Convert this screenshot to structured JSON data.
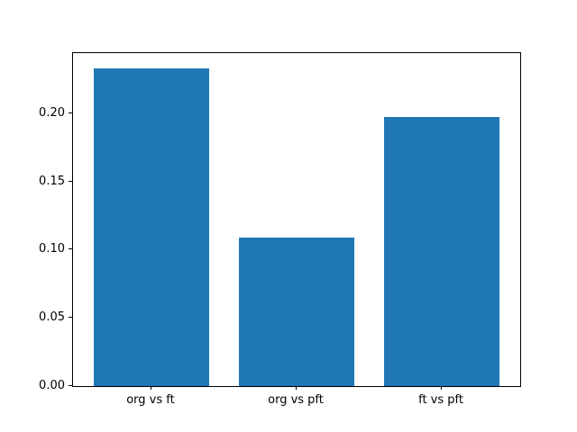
{
  "chart_data": {
    "type": "bar",
    "title": "",
    "xlabel": "",
    "ylabel": "",
    "categories": [
      "org vs ft",
      "org vs pft",
      "ft vs pft"
    ],
    "values": [
      0.233,
      0.109,
      0.197
    ],
    "ylim": [
      0,
      0.244
    ],
    "yticks": [
      0.0,
      0.05,
      0.1,
      0.15,
      0.2
    ],
    "ytick_labels": [
      "0.00",
      "0.05",
      "0.10",
      "0.15",
      "0.20"
    ],
    "bar_width_fraction": 0.8,
    "x_margin_units": 0.54,
    "bar_color": "#1f77b4",
    "axes_edge_color": "#000000",
    "background_color": "#ffffff",
    "grid": false,
    "legend": null
  }
}
